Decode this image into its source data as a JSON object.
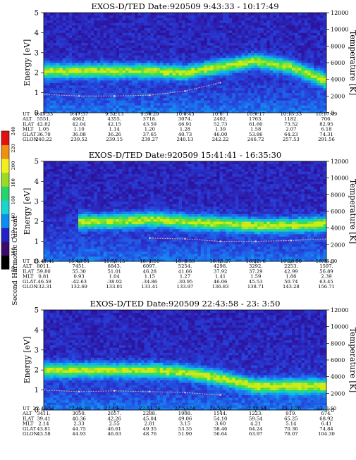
{
  "color_scale": {
    "axis_label": "Second Harmonic Current",
    "ticks": [
      "80",
      "100",
      "120",
      "140",
      "160",
      "180",
      "200",
      "220",
      "240"
    ],
    "colors": [
      "#000000",
      "#3b0a6a",
      "#2222c8",
      "#0a8ef0",
      "#17d6d0",
      "#25d46a",
      "#9adc22",
      "#f2f01a",
      "#f09010",
      "#e41010"
    ]
  },
  "row_labels": [
    "UT",
    "ALT",
    "ILAT",
    "MLT",
    "GLAT",
    "GLON"
  ],
  "chart_data": [
    {
      "type": "heatmap",
      "title": "EXOS-D/TED   Date:920509  9:43:33 - 10:17:49",
      "ylabel": "Energy [eV]",
      "y2label": "Temperature [K]",
      "ylim": [
        0,
        5
      ],
      "y2lim": [
        0,
        12000
      ],
      "yticks": [
        "0",
        "1",
        "2",
        "3",
        "4",
        "5"
      ],
      "y2ticks": [
        "0",
        "2000",
        "4000",
        "6000",
        "8000",
        "10000",
        "12000"
      ],
      "columns": [
        [
          "9:43:33",
          "5551.",
          "42.82",
          "1.05",
          "36.70",
          "240.22"
        ],
        [
          "9:47:57",
          "4962.",
          "42.04",
          "1.10",
          "36.08",
          "239.52"
        ],
        [
          "9:52:13",
          "4355.",
          "42.15",
          "1.14",
          "36.26",
          "239.15"
        ],
        [
          "9:56:29",
          "3718.",
          "43.59",
          "1.20",
          "37.65",
          "239.27"
        ],
        [
          "10:0:45",
          "3074.",
          "46.91",
          "1.28",
          "40.73",
          "240.13"
        ],
        [
          "10:5: 1",
          "2402.",
          "52.73",
          "1.39",
          "46.00",
          "242.22"
        ],
        [
          "10:9:17",
          "1763.",
          "61.60",
          "1.58",
          "53.86",
          "246.72"
        ],
        [
          "10:13:33",
          "1182.",
          "73.52",
          "2.07",
          "64.23",
          "257.53"
        ],
        [
          "10:17:49",
          "706.",
          "82.95",
          "6.18",
          "74.31",
          "291.56"
        ]
      ],
      "band_energy": [
        2.1,
        2.1,
        2.1,
        2.1,
        2.0,
        2.3,
        2.6,
        2.3,
        1.6
      ],
      "temperature": [
        2200,
        2000,
        2000,
        2100,
        2600,
        3600,
        null,
        null,
        null
      ]
    },
    {
      "type": "heatmap",
      "title": "EXOS-D/TED   Date:920509  15:41:41 - 16:35:30",
      "ylabel": "Energy [eV]",
      "y2label": "Temperature [K]",
      "ylim": [
        0,
        5
      ],
      "y2lim": [
        0,
        12000
      ],
      "yticks": [
        "0",
        "1",
        "2",
        "3",
        "4",
        "5"
      ],
      "y2ticks": [
        "0",
        "2000",
        "4000",
        "6000",
        "8000",
        "10000",
        "12000"
      ],
      "columns": [
        [
          "15:41:41",
          "8011.",
          "59.80",
          "0.81",
          "-46.58",
          "132.31"
        ],
        [
          "15:48:51",
          "7451.",
          "55.30",
          "0.93",
          "-42.63",
          "132.69"
        ],
        [
          "15:55:15",
          "6843.",
          "51.01",
          "1.04",
          "-38.92",
          "133.01"
        ],
        [
          "16: 1:59",
          "6097.",
          "46.28",
          "1.15",
          "-34.86",
          "133.41"
        ],
        [
          "16: 8:59",
          "5254.",
          "41.66",
          "1.27",
          "-30.95",
          "133.97"
        ],
        [
          "16:15:27",
          "4298.",
          "37.92",
          "1.41",
          "46.06",
          "136.83"
        ],
        [
          "16:22: 6",
          "3292.",
          "37.29",
          "1.59",
          "45.53",
          "138.71"
        ],
        [
          "16:28:50",
          "2253.",
          "42.99",
          "1.86",
          "50.74",
          "143.28"
        ],
        [
          "16:35:30",
          "1597.",
          "56.89",
          "2.39",
          "63.45",
          "156.71"
        ]
      ],
      "band_energy": [
        null,
        null,
        2.0,
        2.1,
        2.0,
        1.9,
        1.8,
        1.8,
        1.9
      ],
      "temperature": [
        null,
        null,
        null,
        2800,
        2700,
        2400,
        2400,
        2500,
        2700
      ]
    },
    {
      "type": "heatmap",
      "title": "EXOS-D/TED   Date:920509  22:43:58 - 23: 3:50",
      "ylabel": "Energy [eV]",
      "y2label": "Temperature [K]",
      "ylim": [
        0,
        5
      ],
      "y2lim": [
        0,
        12000
      ],
      "yticks": [
        "0",
        "1",
        "2",
        "3",
        "4",
        "5"
      ],
      "y2ticks": [
        "0",
        "2000",
        "4000",
        "6000",
        "8000",
        "10000",
        "12000"
      ],
      "columns": [
        [
          "22:43:58",
          "3411.",
          "39.41",
          "2.14",
          "43.81",
          "43.58"
        ],
        [
          "22:46:30",
          "3050.",
          "40.36",
          "2.33",
          "44.75",
          "44.93"
        ],
        [
          "22:49: 2",
          "2657.",
          "42.26",
          "2.55",
          "46.61",
          "46.63"
        ],
        [
          "22:51:26",
          "2288.",
          "45.04",
          "2.81",
          "49.35",
          "48.76"
        ],
        [
          "22:53:58",
          "1908.",
          "49.06",
          "3.15",
          "53.35",
          "51.90"
        ],
        [
          "22:56:30",
          "1544.",
          "54.10",
          "3.60",
          "58.46",
          "56.64"
        ],
        [
          "22:58:54",
          "1223.",
          "59.54",
          "4.21",
          "64.24",
          "63.97"
        ],
        [
          "23: 1:26",
          "919.",
          "65.25",
          "5.14",
          "70.36",
          "78.07"
        ],
        [
          "23: 3:50",
          "674.",
          "68.92",
          "6.41",
          "74.84",
          "104.30"
        ]
      ],
      "band_energy": [
        2.0,
        2.0,
        2.0,
        2.0,
        1.9,
        1.6,
        1.2,
        1.2,
        1.2
      ],
      "temperature": [
        2400,
        2200,
        2300,
        2200,
        2100,
        1800,
        null,
        null,
        null
      ]
    }
  ]
}
